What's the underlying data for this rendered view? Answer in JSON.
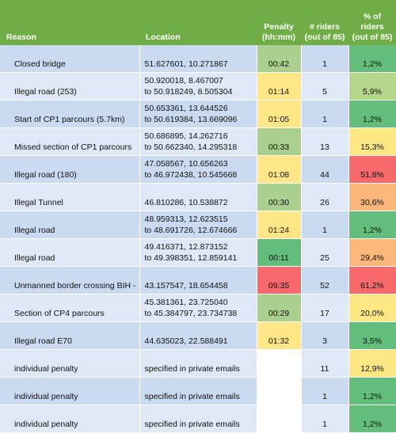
{
  "headers": {
    "reason": "Reason",
    "location": "Location",
    "penalty_line1": "Penalty",
    "penalty_line2": "(hh:mm)",
    "riders_line1": "# riders",
    "riders_line2": "(out of 85)",
    "pct_line1": "% of riders",
    "pct_line2": "(out of 85)"
  },
  "rows": [
    {
      "reason": "Closed bridge",
      "loc1": "51.627601, 10.271867",
      "loc2": "",
      "penalty": "00:42",
      "riders": "1",
      "pct": "1,2%"
    },
    {
      "reason": "Illegal road (253)",
      "loc1": "50.920018, 8.467007",
      "loc2": "to 50.918249, 8.505304",
      "penalty": "01:14",
      "riders": "5",
      "pct": "5,9%"
    },
    {
      "reason": "Start of CP1 parcours (5.7km)",
      "loc1": "50.653361, 13.644526",
      "loc2": "to 50.619384, 13.669096",
      "penalty": "01:05",
      "riders": "1",
      "pct": "1,2%"
    },
    {
      "reason": "Missed section of CP1 parcours",
      "loc1": "50.686895, 14.262716",
      "loc2": "to 50.662340, 14.295318",
      "penalty": "00:33",
      "riders": "13",
      "pct": "15,3%"
    },
    {
      "reason": "Illegal road (180)",
      "loc1": "47.058567, 10.656263",
      "loc2": "to 46.972438, 10.545668",
      "penalty": "01:08",
      "riders": "44",
      "pct": "51,8%"
    },
    {
      "reason": "Illegal Tunnel",
      "loc1": "46.810286, 10.538872",
      "loc2": "",
      "penalty": "00:30",
      "riders": "26",
      "pct": "30,6%"
    },
    {
      "reason": "Illegal road",
      "loc1": "48.959313, 12.623515",
      "loc2": "to 48.691726, 12.674666",
      "penalty": "01:24",
      "riders": "1",
      "pct": "1,2%"
    },
    {
      "reason": "Illegal road",
      "loc1": "49.416371, 12.873152",
      "loc2": "to 49.398351, 12.859141",
      "penalty": "00:11",
      "riders": "25",
      "pct": "29,4%"
    },
    {
      "reason": "Unmanned border crossing BIH -",
      "loc1": "43.157547, 18.654458",
      "loc2": "",
      "penalty": "09:35",
      "riders": "52",
      "pct": "61,2%"
    },
    {
      "reason": "Section of CP4 parcours",
      "loc1": "45.381361, 23.725040",
      "loc2": "to 45.384797, 23.734738",
      "penalty": "00:29",
      "riders": "17",
      "pct": "20,0%"
    },
    {
      "reason": "Illegal road E70",
      "loc1": "44.635023, 22.588491",
      "loc2": "",
      "penalty": "01:32",
      "riders": "3",
      "pct": "3,5%"
    },
    {
      "reason": "individual penalty",
      "loc1": "specified in private emails",
      "loc2": "",
      "penalty": "",
      "riders": "11",
      "pct": "12,9%"
    },
    {
      "reason": "individual penalty",
      "loc1": "specified in private emails",
      "loc2": "",
      "penalty": "",
      "riders": "1",
      "pct": "1,2%"
    },
    {
      "reason": "individual penalty",
      "loc1": "specified in private emails",
      "loc2": "",
      "penalty": "",
      "riders": "1",
      "pct": "1,2%"
    }
  ],
  "colors": {
    "header_green": "#70ad47",
    "row_band": "#c9daf1",
    "row_plain": "#dee8f6",
    "scale_green": "#63be7b",
    "scale_yellow": "#ffe788",
    "scale_red": "#f8696b"
  }
}
